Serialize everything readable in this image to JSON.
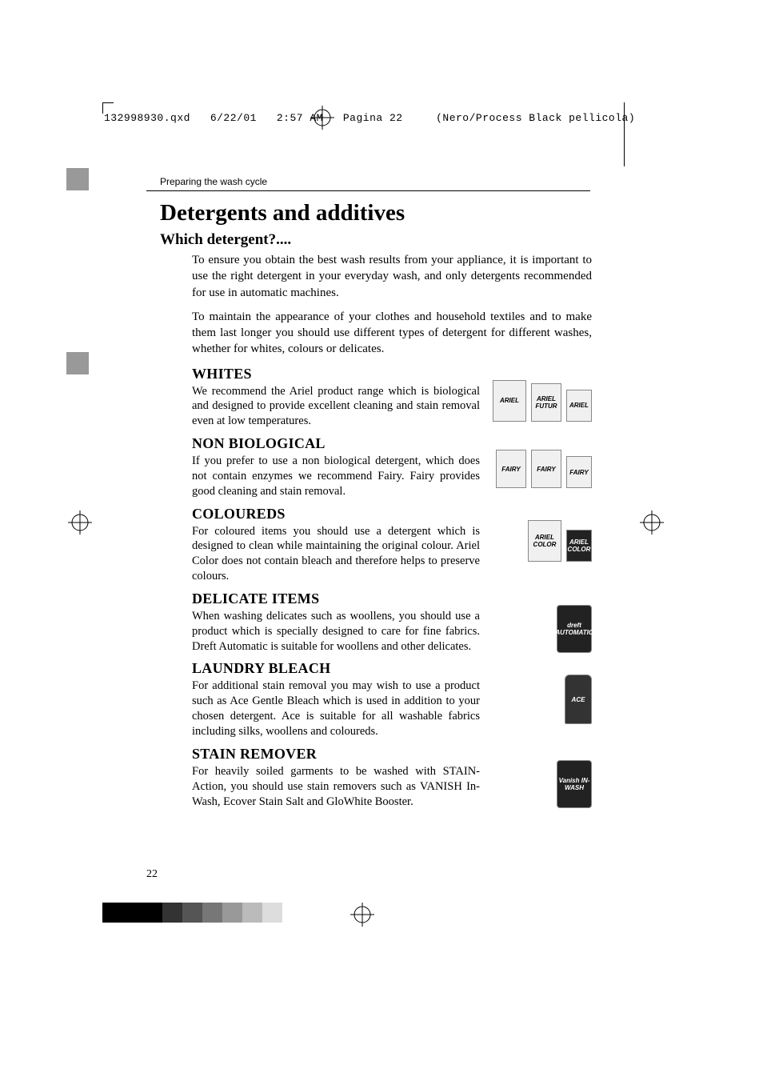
{
  "slug": {
    "filename": "132998930.qxd",
    "date": "6/22/01",
    "time": "2:57 AM",
    "pagina": "Pagina 22",
    "plate": "(Nero/Process Black pellicola)"
  },
  "running_head": "Preparing the wash cycle",
  "main_title": "Detergents and additives",
  "subtitle": "Which detergent?....",
  "intro_p1": "To ensure you obtain the best wash results from your appliance, it is important to use the right detergent in your everyday wash, and only detergents recommended for use in automatic machines.",
  "intro_p2": "To maintain the appearance of your clothes and household textiles and to make them last longer you should use different types of detergent for different washes, whether for whites, colours or delicates.",
  "sections": [
    {
      "title": "WHITES",
      "body": "We recommend the Ariel product range which is biological and designed to provide excellent cleaning and stain removal even at low temperatures.",
      "products": [
        {
          "label": "ARIEL",
          "size": "prod-lg",
          "dark": false
        },
        {
          "label": "ARIEL FUTUR",
          "size": "prod-md",
          "dark": false
        },
        {
          "label": "ARIEL",
          "size": "prod-sm",
          "dark": false
        }
      ]
    },
    {
      "title": "NON BIOLOGICAL",
      "body": "If you prefer to use a non biological detergent, which does not contain enzymes we recommend Fairy. Fairy provides good cleaning and stain removal.",
      "products": [
        {
          "label": "FAIRY",
          "size": "prod-md",
          "dark": false
        },
        {
          "label": "FAIRY",
          "size": "prod-md",
          "dark": false
        },
        {
          "label": "FAIRY",
          "size": "prod-sm",
          "dark": false
        }
      ]
    },
    {
      "title": "COLOUREDS",
      "body": "For coloured items you should use a detergent which is designed to clean while maintaining the original colour. Ariel Color does not contain bleach and therefore helps to preserve colours.",
      "products": [
        {
          "label": "ARIEL COLOR",
          "size": "prod-lg",
          "dark": false
        },
        {
          "label": "ARIEL COLOR",
          "size": "prod-sm",
          "dark": true
        }
      ]
    },
    {
      "title": "DELICATE ITEMS",
      "body": "When washing delicates such as woollens, you should use a product which is specially designed to care for fine fabrics. Dreft Automatic is suitable for woollens and other delicates.",
      "products": [
        {
          "label": "dreft AUTOMATIC",
          "size": "prod-tall",
          "dark": true
        }
      ]
    },
    {
      "title": "LAUNDRY BLEACH",
      "body": "For additional stain removal you may wish to use a product such as Ace Gentle Bleach which is used in addition to your chosen detergent. Ace is suitable for all washable fabrics including silks, woollens and coloureds.",
      "products": [
        {
          "label": "ACE",
          "size": "prod-bottle",
          "dark": true
        }
      ]
    },
    {
      "title": "STAIN REMOVER",
      "body": "For heavily soiled garments to be washed with STAIN-Action, you should use stain removers such as VANISH In-Wash, Ecover Stain Salt and GloWhite Booster.",
      "products": [
        {
          "label": "Vanish IN-WASH",
          "size": "prod-tall",
          "dark": true
        }
      ]
    }
  ],
  "page_number": "22",
  "density_colors": [
    "#000000",
    "#000000",
    "#000000",
    "#333333",
    "#555555",
    "#777777",
    "#999999",
    "#bbbbbb",
    "#dddddd"
  ]
}
